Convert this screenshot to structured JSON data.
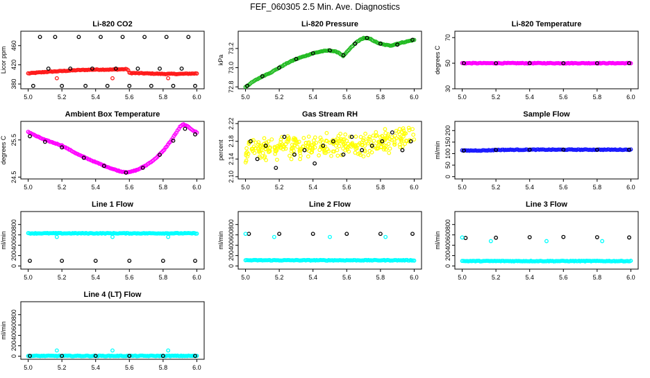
{
  "page": {
    "title": "FEF_060305  2.5 Min. Ave. Diagnostics"
  },
  "colors": {
    "red": "#ff1a1a",
    "black": "#000000",
    "green": "#22bb22",
    "magenta": "#ff00ff",
    "yellow": "#ffff00",
    "blue": "#1a1aff",
    "cyan": "#00ffff",
    "axis": "#000000",
    "background": "#ffffff"
  },
  "chart_data": [
    {
      "type": "scatter",
      "title": "Li-820 CO2",
      "xlabel": "",
      "ylabel": "Licor ppm",
      "xlim": [
        5.0,
        6.0
      ],
      "ylim": [
        370,
        490
      ],
      "xticks": [
        "5.0",
        "5.2",
        "5.4",
        "5.6",
        "5.8",
        "6.0"
      ],
      "yticks": [
        380,
        420,
        460
      ],
      "ytick_labels": [
        "380",
        "420",
        "460"
      ],
      "series": [
        {
          "name": "dense",
          "color": "red",
          "x": [
            5.0,
            5.1,
            5.2,
            5.3,
            5.4,
            5.5,
            5.59,
            5.6,
            5.7,
            5.8,
            5.9,
            6.0
          ],
          "y": [
            402,
            405,
            407,
            409,
            410,
            410,
            411,
            403,
            402,
            401,
            401,
            402
          ]
        },
        {
          "name": "points",
          "color": "black",
          "x": [
            5.03,
            5.07,
            5.12,
            5.16,
            5.2,
            5.25,
            5.3,
            5.34,
            5.38,
            5.43,
            5.47,
            5.52,
            5.56,
            5.6,
            5.65,
            5.69,
            5.73,
            5.78,
            5.82,
            5.86,
            5.91,
            5.95,
            5.99
          ],
          "y": [
            376,
            478,
            412,
            478,
            376,
            412,
            478,
            376,
            412,
            478,
            376,
            412,
            478,
            376,
            412,
            478,
            376,
            412,
            478,
            376,
            412,
            478,
            376
          ]
        },
        {
          "name": "markers",
          "color": "red",
          "x": [
            5.17,
            5.5,
            5.83
          ],
          "y": [
            392,
            392,
            392
          ]
        }
      ]
    },
    {
      "type": "scatter",
      "title": "Li-820 Pressure",
      "xlabel": "",
      "ylabel": "kPa",
      "xlim": [
        5.0,
        6.0
      ],
      "ylim": [
        72.78,
        73.38
      ],
      "xticks": [
        "5.0",
        "5.2",
        "5.4",
        "5.6",
        "5.8",
        "6.0"
      ],
      "yticks": [
        72.8,
        73.0,
        73.2
      ],
      "ytick_labels": [
        "72.8",
        "73.0",
        "73.2"
      ],
      "series": [
        {
          "name": "dense",
          "color": "green",
          "x": [
            5.0,
            5.05,
            5.1,
            5.15,
            5.2,
            5.25,
            5.3,
            5.35,
            5.4,
            5.45,
            5.5,
            5.55,
            5.58,
            5.62,
            5.66,
            5.7,
            5.74,
            5.78,
            5.82,
            5.86,
            5.9,
            5.95,
            6.0
          ],
          "y": [
            72.8,
            72.86,
            72.91,
            72.95,
            73.0,
            73.05,
            73.09,
            73.12,
            73.15,
            73.17,
            73.18,
            73.16,
            73.12,
            73.2,
            73.27,
            73.31,
            73.3,
            73.26,
            73.24,
            73.23,
            73.25,
            73.27,
            73.29
          ]
        },
        {
          "name": "points",
          "color": "black",
          "x": [
            5.01,
            5.1,
            5.2,
            5.3,
            5.4,
            5.5,
            5.58,
            5.65,
            5.72,
            5.8,
            5.9,
            5.99
          ],
          "y": [
            72.81,
            72.91,
            73.0,
            73.09,
            73.15,
            73.18,
            73.13,
            73.25,
            73.31,
            73.25,
            73.24,
            73.29
          ]
        }
      ]
    },
    {
      "type": "scatter",
      "title": "Li-820 Temperature",
      "xlabel": "",
      "ylabel": "degrees C",
      "xlim": [
        5.0,
        6.0
      ],
      "ylim": [
        30,
        75
      ],
      "xticks": [
        "5.0",
        "5.2",
        "5.4",
        "5.6",
        "5.8",
        "6.0"
      ],
      "yticks": [
        30,
        50,
        70
      ],
      "ytick_labels": [
        "30",
        "50",
        "70"
      ],
      "series": [
        {
          "name": "dense",
          "color": "magenta",
          "x": [
            5.0,
            5.2,
            5.4,
            5.6,
            5.8,
            6.0
          ],
          "y": [
            50,
            50,
            50,
            50,
            50,
            50
          ]
        },
        {
          "name": "points",
          "color": "black",
          "x": [
            5.01,
            5.2,
            5.4,
            5.6,
            5.8,
            5.99
          ],
          "y": [
            50,
            50,
            50,
            50,
            50,
            50
          ]
        }
      ]
    },
    {
      "type": "scatter",
      "title": "Ambient Box Temperature",
      "xlabel": "",
      "ylabel": "degrees C",
      "xlim": [
        5.0,
        6.0
      ],
      "ylim": [
        24.45,
        26.0
      ],
      "xticks": [
        "5.0",
        "5.2",
        "5.4",
        "5.6",
        "5.8",
        "6.0"
      ],
      "yticks": [
        24.5,
        25.5
      ],
      "ytick_labels": [
        "24.5",
        "25.5"
      ],
      "series": [
        {
          "name": "dense",
          "color": "magenta",
          "x": [
            5.0,
            5.05,
            5.1,
            5.2,
            5.3,
            5.4,
            5.5,
            5.55,
            5.6,
            5.65,
            5.7,
            5.75,
            5.8,
            5.85,
            5.9,
            5.92,
            5.95,
            5.98,
            6.0
          ],
          "y": [
            25.72,
            25.6,
            25.5,
            25.35,
            25.1,
            24.9,
            24.72,
            24.65,
            24.63,
            24.7,
            24.82,
            24.98,
            25.2,
            25.5,
            25.85,
            25.92,
            25.85,
            25.75,
            25.7
          ]
        },
        {
          "name": "points",
          "color": "black",
          "x": [
            5.01,
            5.1,
            5.2,
            5.33,
            5.45,
            5.58,
            5.68,
            5.78,
            5.86,
            5.93,
            5.99
          ],
          "y": [
            25.6,
            25.45,
            25.3,
            25.02,
            24.8,
            24.62,
            24.75,
            25.1,
            25.48,
            25.8,
            25.65
          ]
        }
      ]
    },
    {
      "type": "scatter",
      "title": "Gas Stream RH",
      "xlabel": "",
      "ylabel": "percent",
      "xlim": [
        5.0,
        6.0
      ],
      "ylim": [
        2.095,
        2.225
      ],
      "xticks": [
        "5.0",
        "5.2",
        "5.4",
        "5.6",
        "5.8",
        "6.0"
      ],
      "yticks": [
        2.1,
        2.14,
        2.18,
        2.22
      ],
      "ytick_labels": [
        "2.10",
        "2.14",
        "2.18",
        "2.22"
      ],
      "series": [
        {
          "name": "scattered",
          "color": "yellow",
          "x": [
            5.0,
            5.08,
            5.15,
            5.22,
            5.3,
            5.38,
            5.45,
            5.52,
            5.6,
            5.68,
            5.75,
            5.82,
            5.9,
            5.96,
            6.0
          ],
          "y": [
            2.16,
            2.17,
            2.16,
            2.17,
            2.165,
            2.17,
            2.17,
            2.17,
            2.175,
            2.17,
            2.175,
            2.18,
            2.185,
            2.19,
            2.185
          ]
        },
        {
          "name": "points",
          "color": "black",
          "x": [
            5.03,
            5.07,
            5.12,
            5.18,
            5.23,
            5.29,
            5.35,
            5.41,
            5.46,
            5.52,
            5.58,
            5.63,
            5.69,
            5.75,
            5.81,
            5.87,
            5.93,
            5.98
          ],
          "y": [
            2.18,
            2.14,
            2.17,
            2.12,
            2.19,
            2.15,
            2.16,
            2.13,
            2.17,
            2.18,
            2.15,
            2.19,
            2.16,
            2.17,
            2.18,
            2.2,
            2.16,
            2.18
          ]
        }
      ]
    },
    {
      "type": "scatter",
      "title": "Sample Flow",
      "xlabel": "",
      "ylabel": "ml/min",
      "xlim": [
        5.0,
        6.0
      ],
      "ylim": [
        -10,
        240
      ],
      "xticks": [
        "5.0",
        "5.2",
        "5.4",
        "5.6",
        "5.8",
        "6.0"
      ],
      "yticks": [
        0,
        50,
        100,
        150,
        200
      ],
      "ytick_labels": [
        "0",
        "50",
        "100",
        "150",
        "200"
      ],
      "series": [
        {
          "name": "dense",
          "color": "blue",
          "x": [
            5.0,
            5.15,
            5.2,
            5.4,
            5.6,
            5.8,
            6.0
          ],
          "y": [
            113,
            114,
            116,
            117,
            117,
            117,
            117
          ]
        },
        {
          "name": "points",
          "color": "black",
          "x": [
            5.01,
            5.2,
            5.4,
            5.6,
            5.8,
            5.99
          ],
          "y": [
            113,
            116,
            117,
            117,
            117,
            117
          ]
        }
      ]
    },
    {
      "type": "scatter",
      "title": "Line 1 Flow",
      "xlabel": "",
      "ylabel": "ml/min",
      "xlim": [
        5.0,
        6.0
      ],
      "ylim": [
        -60,
        1050
      ],
      "xticks": [
        "5.0",
        "5.2",
        "5.4",
        "5.6",
        "5.8",
        "6.0"
      ],
      "yticks": [
        0,
        200,
        400,
        600,
        800
      ],
      "ytick_labels": [
        "0",
        "200",
        "400",
        "600",
        "800"
      ],
      "series": [
        {
          "name": "dense",
          "color": "cyan",
          "x": [
            5.0,
            5.2,
            5.4,
            5.6,
            5.8,
            6.0
          ],
          "y": [
            630,
            630,
            630,
            630,
            630,
            630
          ]
        },
        {
          "name": "points",
          "color": "black",
          "x": [
            5.01,
            5.2,
            5.4,
            5.6,
            5.8,
            5.99
          ],
          "y": [
            100,
            100,
            100,
            100,
            100,
            100
          ]
        },
        {
          "name": "markers",
          "color": "cyan",
          "x": [
            5.17,
            5.5,
            5.83
          ],
          "y": [
            560,
            560,
            560
          ]
        }
      ]
    },
    {
      "type": "scatter",
      "title": "Line 2 Flow",
      "xlabel": "",
      "ylabel": "ml/min",
      "xlim": [
        5.0,
        6.0
      ],
      "ylim": [
        -60,
        1050
      ],
      "xticks": [
        "5.0",
        "5.2",
        "5.4",
        "5.6",
        "5.8",
        "6.0"
      ],
      "yticks": [
        0,
        200,
        400,
        600,
        800
      ],
      "ytick_labels": [
        "0",
        "200",
        "400",
        "600",
        "800"
      ],
      "series": [
        {
          "name": "dense",
          "color": "cyan",
          "x": [
            5.0,
            5.2,
            5.4,
            5.6,
            5.8,
            6.0
          ],
          "y": [
            110,
            110,
            110,
            110,
            110,
            110
          ]
        },
        {
          "name": "points",
          "color": "black",
          "x": [
            5.02,
            5.2,
            5.4,
            5.6,
            5.8,
            5.99
          ],
          "y": [
            620,
            620,
            620,
            620,
            620,
            620
          ]
        },
        {
          "name": "markers",
          "color": "cyan",
          "x": [
            5.0,
            5.17,
            5.5,
            5.83
          ],
          "y": [
            620,
            560,
            560,
            560
          ]
        }
      ]
    },
    {
      "type": "scatter",
      "title": "Line 3 Flow",
      "xlabel": "",
      "ylabel": "ml/min",
      "xlim": [
        5.0,
        6.0
      ],
      "ylim": [
        -60,
        1050
      ],
      "xticks": [
        "5.0",
        "5.2",
        "5.4",
        "5.6",
        "5.8",
        "6.0"
      ],
      "yticks": [
        0,
        200,
        400,
        600,
        800
      ],
      "ytick_labels": [
        "0",
        "200",
        "400",
        "600",
        "800"
      ],
      "series": [
        {
          "name": "dense",
          "color": "cyan",
          "x": [
            5.0,
            5.2,
            5.4,
            5.6,
            5.8,
            6.0
          ],
          "y": [
            95,
            95,
            95,
            95,
            95,
            95
          ]
        },
        {
          "name": "points",
          "color": "black",
          "x": [
            5.02,
            5.2,
            5.4,
            5.6,
            5.8,
            5.99
          ],
          "y": [
            540,
            545,
            555,
            560,
            555,
            550
          ]
        },
        {
          "name": "markers",
          "color": "cyan",
          "x": [
            5.0,
            5.17,
            5.5,
            5.83
          ],
          "y": [
            550,
            480,
            480,
            480
          ]
        }
      ]
    },
    {
      "type": "scatter",
      "title": "Line 4 (LT) Flow",
      "xlabel": "",
      "ylabel": "ml/min",
      "xlim": [
        5.0,
        6.0
      ],
      "ylim": [
        -60,
        1050
      ],
      "xticks": [
        "5.0",
        "5.2",
        "5.4",
        "5.6",
        "5.8",
        "6.0"
      ],
      "yticks": [
        0,
        200,
        400,
        600,
        800
      ],
      "ytick_labels": [
        "0",
        "200",
        "400",
        "600",
        "800"
      ],
      "series": [
        {
          "name": "dense",
          "color": "cyan",
          "x": [
            5.0,
            5.2,
            5.4,
            5.6,
            5.8,
            6.0
          ],
          "y": [
            5,
            5,
            5,
            5,
            5,
            5
          ]
        },
        {
          "name": "points",
          "color": "black",
          "x": [
            5.01,
            5.2,
            5.4,
            5.6,
            5.8,
            5.99
          ],
          "y": [
            5,
            5,
            5,
            5,
            5,
            5
          ]
        },
        {
          "name": "markers",
          "color": "cyan",
          "x": [
            5.17,
            5.5,
            5.83
          ],
          "y": [
            110,
            110,
            110
          ]
        }
      ]
    }
  ]
}
